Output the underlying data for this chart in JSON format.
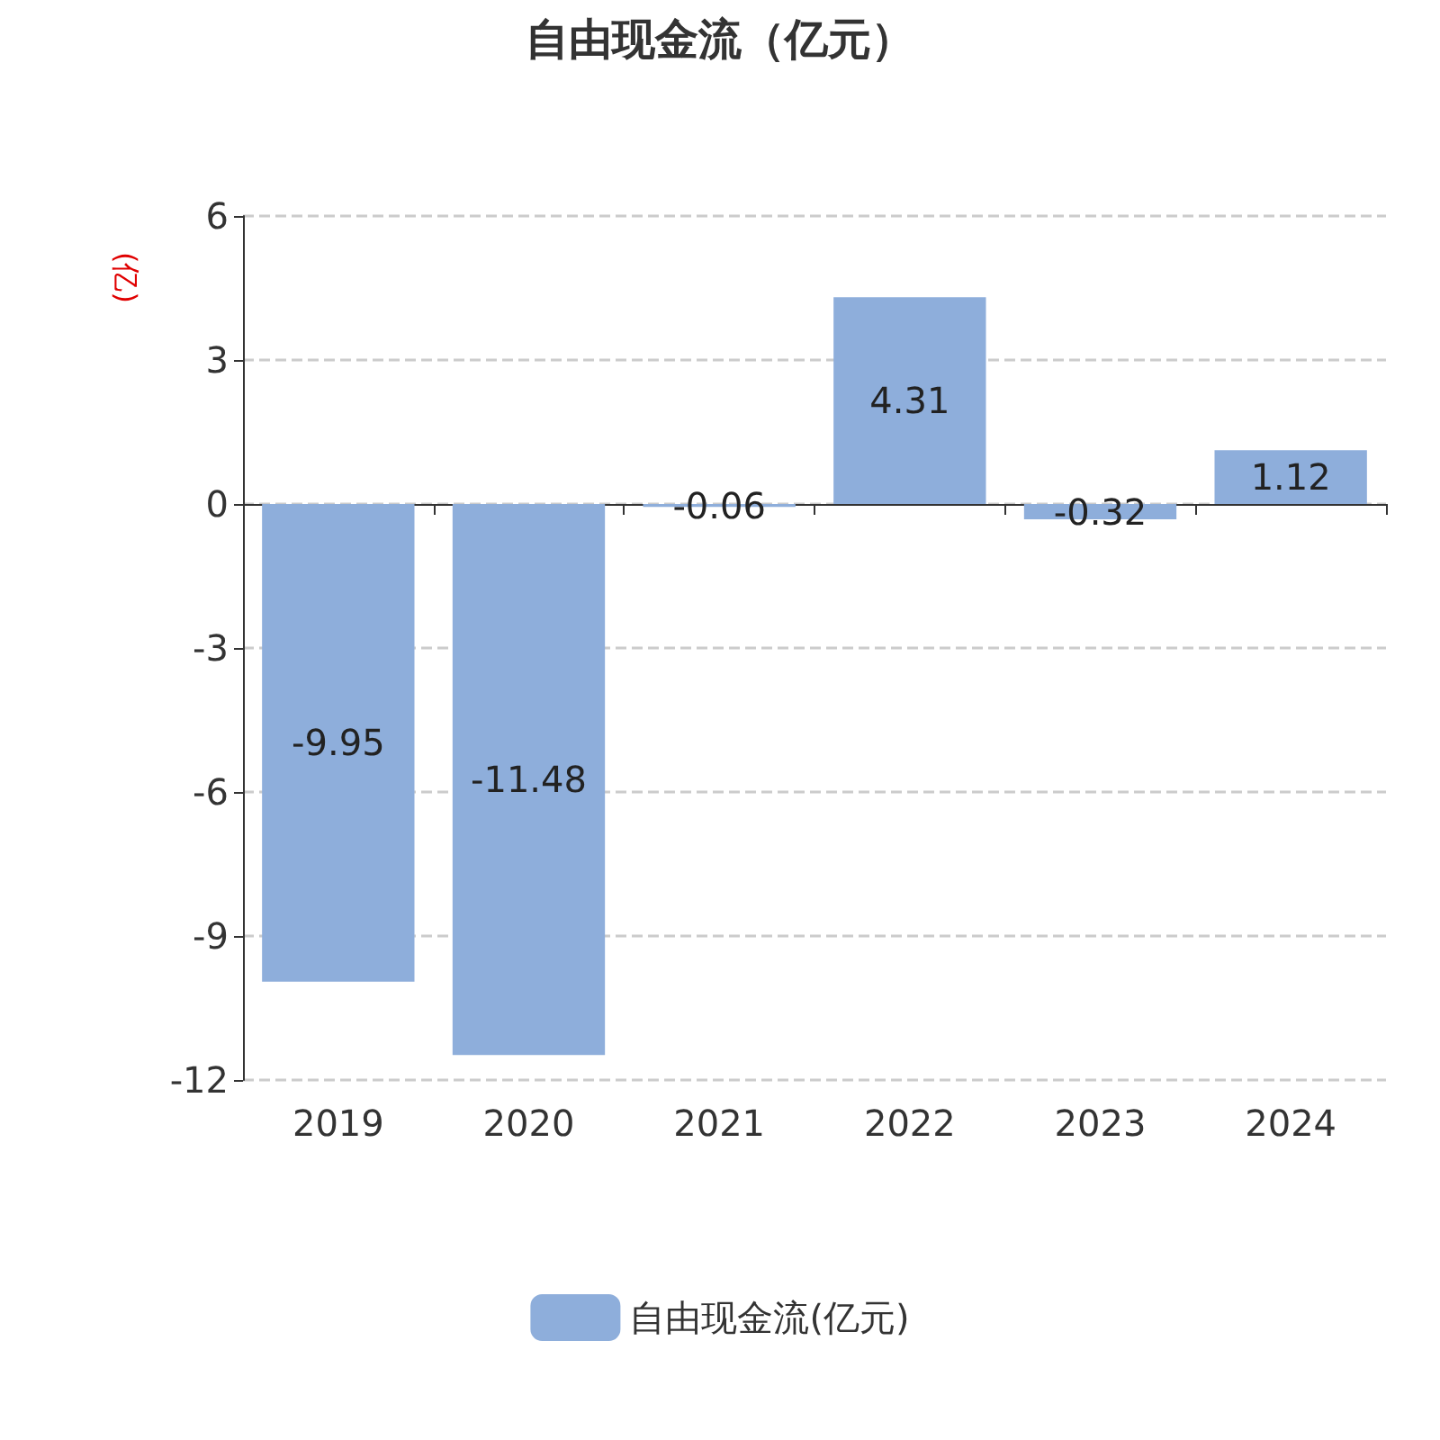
{
  "chart_data": {
    "type": "bar",
    "title": "自由现金流（亿元）",
    "ylabel": "(亿)",
    "categories": [
      "2019",
      "2020",
      "2021",
      "2022",
      "2023",
      "2024"
    ],
    "series": [
      {
        "name": "自由现金流(亿元)",
        "color": "#8eaedb",
        "values": [
          -9.95,
          -11.48,
          -0.06,
          4.31,
          -0.32,
          1.12
        ]
      }
    ],
    "ylim": [
      -12,
      6
    ],
    "yticks": [
      -12,
      -9,
      -6,
      -3,
      0,
      3,
      6
    ],
    "grid": "y",
    "legend": "bottom",
    "data_labels": true
  }
}
